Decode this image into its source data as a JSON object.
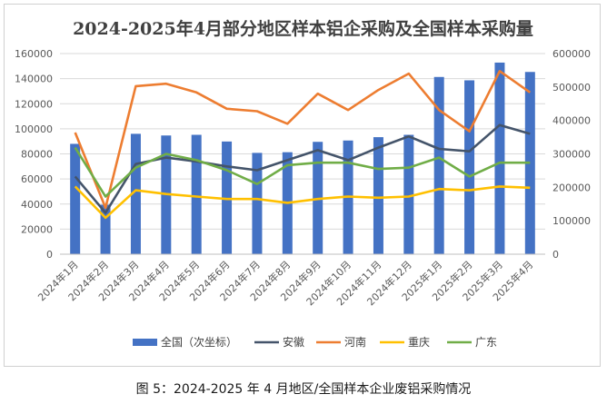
{
  "chart_data": {
    "type": "bar",
    "title": "2024-2025年4月部分地区样本铝企采购及全国样本采购量",
    "categories": [
      "2024年1月",
      "2024年2月",
      "2024年3月",
      "2024年4月",
      "2024年5月",
      "2024年6月",
      "2024年7月",
      "2024年8月",
      "2024年9月",
      "2024年10月",
      "2024年11月",
      "2024年12月",
      "2025年1月",
      "2025年2月",
      "2025年3月",
      "2025年4月"
    ],
    "left_axis": {
      "min": 0,
      "max": 160000,
      "step": 20000,
      "ticks": [
        "0",
        "20000",
        "40000",
        "60000",
        "80000",
        "100000",
        "120000",
        "140000",
        "160000"
      ]
    },
    "right_axis": {
      "min": 0,
      "max": 600000,
      "step": 100000,
      "ticks": [
        "0",
        "100000",
        "200000",
        "300000",
        "400000",
        "500000",
        "600000"
      ]
    },
    "series": [
      {
        "name": "全国（次坐标）",
        "type": "bar",
        "axis": "right",
        "color": "#4472C4",
        "values": [
          330000,
          148000,
          360000,
          355000,
          357000,
          337000,
          303000,
          305000,
          336000,
          340000,
          350000,
          357000,
          530000,
          520000,
          573000,
          545000
        ]
      },
      {
        "name": "安徽",
        "type": "line",
        "axis": "left",
        "color": "#44546A",
        "values": [
          62000,
          33000,
          72000,
          77000,
          74000,
          70000,
          67000,
          75000,
          83000,
          75000,
          85000,
          94000,
          84000,
          82000,
          103000,
          96000
        ]
      },
      {
        "name": "河南",
        "type": "line",
        "axis": "left",
        "color": "#ED7D31",
        "values": [
          97000,
          37000,
          134000,
          136000,
          129000,
          116000,
          114000,
          104000,
          128000,
          115000,
          131000,
          144000,
          115000,
          98000,
          146000,
          129000
        ]
      },
      {
        "name": "重庆",
        "type": "line",
        "axis": "left",
        "color": "#FFC000",
        "values": [
          54000,
          29000,
          51000,
          48000,
          46000,
          44000,
          44000,
          41000,
          44000,
          46000,
          45000,
          46000,
          52000,
          51000,
          54000,
          53000
        ]
      },
      {
        "name": "广东",
        "type": "line",
        "axis": "left",
        "color": "#70AD47",
        "values": [
          85000,
          46000,
          69000,
          80000,
          75000,
          67000,
          56000,
          71000,
          73000,
          73000,
          68000,
          69000,
          77000,
          62000,
          73000,
          73000
        ]
      }
    ],
    "legend_position": "bottom",
    "grid": true
  },
  "caption": "图 5：2024-2025 年 4 月地区/全国样本企业废铝采购情况"
}
